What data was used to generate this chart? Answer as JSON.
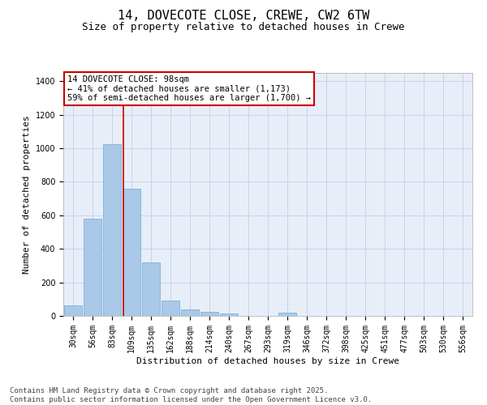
{
  "title": "14, DOVECOTE CLOSE, CREWE, CW2 6TW",
  "subtitle": "Size of property relative to detached houses in Crewe",
  "xlabel": "Distribution of detached houses by size in Crewe",
  "ylabel": "Number of detached properties",
  "categories": [
    "30sqm",
    "56sqm",
    "83sqm",
    "109sqm",
    "135sqm",
    "162sqm",
    "188sqm",
    "214sqm",
    "240sqm",
    "267sqm",
    "293sqm",
    "319sqm",
    "346sqm",
    "372sqm",
    "398sqm",
    "425sqm",
    "451sqm",
    "477sqm",
    "503sqm",
    "530sqm",
    "556sqm"
  ],
  "values": [
    65,
    580,
    1025,
    760,
    320,
    90,
    38,
    22,
    14,
    0,
    0,
    20,
    0,
    0,
    0,
    0,
    0,
    0,
    0,
    0,
    0
  ],
  "bar_color": "#aac8e8",
  "bar_edge_color": "#6aaad4",
  "grid_color": "#c8d4e8",
  "background_color": "#e8eef8",
  "vline_color": "#cc0000",
  "annotation_text": "14 DOVECOTE CLOSE: 98sqm\n← 41% of detached houses are smaller (1,173)\n59% of semi-detached houses are larger (1,700) →",
  "annotation_box_color": "#cc0000",
  "footer_text": "Contains HM Land Registry data © Crown copyright and database right 2025.\nContains public sector information licensed under the Open Government Licence v3.0.",
  "ylim": [
    0,
    1450
  ],
  "yticks": [
    0,
    200,
    400,
    600,
    800,
    1000,
    1200,
    1400
  ],
  "title_fontsize": 11,
  "subtitle_fontsize": 9,
  "label_fontsize": 8,
  "tick_fontsize": 7,
  "footer_fontsize": 6.5
}
